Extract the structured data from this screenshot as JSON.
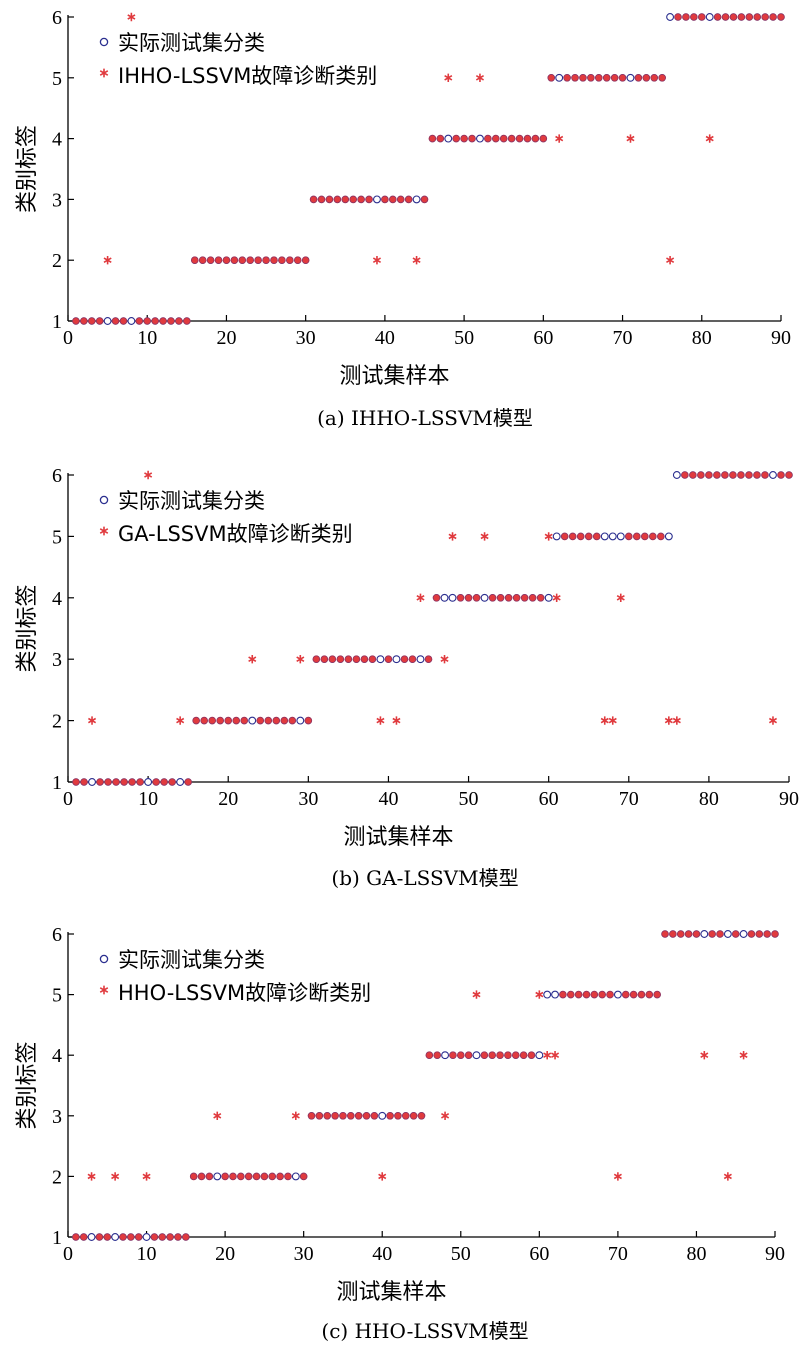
{
  "chart_data": [
    {
      "type": "scatter",
      "caption": "(a) IHHO-LSSVM模型",
      "xlabel": "测试集样本",
      "ylabel": "类别标签",
      "xlim": [
        0,
        90
      ],
      "ylim": [
        1,
        6
      ],
      "xticks": [
        0,
        10,
        20,
        30,
        40,
        50,
        60,
        70,
        80,
        90
      ],
      "yticks": [
        1,
        2,
        3,
        4,
        5,
        6
      ],
      "legend_position": "top-left",
      "series": [
        {
          "name": "实际测试集分类",
          "marker": "circle",
          "color": "#2b2f8f",
          "x": [
            1,
            2,
            3,
            4,
            5,
            6,
            7,
            8,
            9,
            10,
            11,
            12,
            13,
            14,
            15,
            16,
            17,
            18,
            19,
            20,
            21,
            22,
            23,
            24,
            25,
            26,
            27,
            28,
            29,
            30,
            31,
            32,
            33,
            34,
            35,
            36,
            37,
            38,
            39,
            40,
            41,
            42,
            43,
            44,
            45,
            46,
            47,
            48,
            49,
            50,
            51,
            52,
            53,
            54,
            55,
            56,
            57,
            58,
            59,
            60,
            61,
            62,
            63,
            64,
            65,
            66,
            67,
            68,
            69,
            70,
            71,
            72,
            73,
            74,
            75,
            76,
            77,
            78,
            79,
            80,
            81,
            82,
            83,
            84,
            85,
            86,
            87,
            88,
            89,
            90
          ],
          "y": [
            1,
            1,
            1,
            1,
            1,
            1,
            1,
            1,
            1,
            1,
            1,
            1,
            1,
            1,
            1,
            2,
            2,
            2,
            2,
            2,
            2,
            2,
            2,
            2,
            2,
            2,
            2,
            2,
            2,
            2,
            3,
            3,
            3,
            3,
            3,
            3,
            3,
            3,
            3,
            3,
            3,
            3,
            3,
            3,
            3,
            4,
            4,
            4,
            4,
            4,
            4,
            4,
            4,
            4,
            4,
            4,
            4,
            4,
            4,
            4,
            5,
            5,
            5,
            5,
            5,
            5,
            5,
            5,
            5,
            5,
            5,
            5,
            5,
            5,
            5,
            6,
            6,
            6,
            6,
            6,
            6,
            6,
            6,
            6,
            6,
            6,
            6,
            6,
            6,
            6
          ]
        },
        {
          "name": "IHHO-LSSVM故障诊断类别",
          "marker": "star",
          "color": "#e03a3e",
          "x": [
            1,
            2,
            3,
            4,
            5,
            6,
            7,
            8,
            9,
            10,
            11,
            12,
            13,
            14,
            15,
            16,
            17,
            18,
            19,
            20,
            21,
            22,
            23,
            24,
            25,
            26,
            27,
            28,
            29,
            30,
            31,
            32,
            33,
            34,
            35,
            36,
            37,
            38,
            39,
            40,
            41,
            42,
            43,
            44,
            45,
            46,
            47,
            48,
            49,
            50,
            51,
            52,
            53,
            54,
            55,
            56,
            57,
            58,
            59,
            60,
            61,
            62,
            63,
            64,
            65,
            66,
            67,
            68,
            69,
            70,
            71,
            72,
            73,
            74,
            75,
            76,
            77,
            78,
            79,
            80,
            81,
            82,
            83,
            84,
            85,
            86,
            87,
            88,
            89,
            90
          ],
          "y": [
            1,
            1,
            1,
            1,
            2,
            1,
            1,
            6,
            1,
            1,
            1,
            1,
            1,
            1,
            1,
            2,
            2,
            2,
            2,
            2,
            2,
            2,
            2,
            2,
            2,
            2,
            2,
            2,
            2,
            2,
            3,
            3,
            3,
            3,
            3,
            3,
            3,
            3,
            2,
            3,
            3,
            3,
            3,
            2,
            3,
            4,
            4,
            5,
            4,
            4,
            4,
            5,
            4,
            4,
            4,
            4,
            4,
            4,
            4,
            4,
            5,
            4,
            5,
            5,
            5,
            5,
            5,
            5,
            5,
            5,
            4,
            5,
            5,
            5,
            5,
            2,
            6,
            6,
            6,
            6,
            4,
            6,
            6,
            6,
            6,
            6,
            6,
            6,
            6,
            6
          ]
        }
      ]
    },
    {
      "type": "scatter",
      "caption": "(b) GA-LSSVM模型",
      "xlabel": "测试集样本",
      "ylabel": "类别标签",
      "xlim": [
        0,
        90
      ],
      "ylim": [
        1,
        6
      ],
      "xticks": [
        0,
        10,
        20,
        30,
        40,
        50,
        60,
        70,
        80,
        90
      ],
      "yticks": [
        1,
        2,
        3,
        4,
        5,
        6
      ],
      "legend_position": "top-left",
      "series": [
        {
          "name": "实际测试集分类",
          "marker": "circle",
          "color": "#2b2f8f",
          "x": [
            1,
            2,
            3,
            4,
            5,
            6,
            7,
            8,
            9,
            10,
            11,
            12,
            13,
            14,
            15,
            16,
            17,
            18,
            19,
            20,
            21,
            22,
            23,
            24,
            25,
            26,
            27,
            28,
            29,
            30,
            31,
            32,
            33,
            34,
            35,
            36,
            37,
            38,
            39,
            40,
            41,
            42,
            43,
            44,
            45,
            46,
            47,
            48,
            49,
            50,
            51,
            52,
            53,
            54,
            55,
            56,
            57,
            58,
            59,
            60,
            61,
            62,
            63,
            64,
            65,
            66,
            67,
            68,
            69,
            70,
            71,
            72,
            73,
            74,
            75,
            76,
            77,
            78,
            79,
            80,
            81,
            82,
            83,
            84,
            85,
            86,
            87,
            88,
            89,
            90
          ],
          "y": [
            1,
            1,
            1,
            1,
            1,
            1,
            1,
            1,
            1,
            1,
            1,
            1,
            1,
            1,
            1,
            2,
            2,
            2,
            2,
            2,
            2,
            2,
            2,
            2,
            2,
            2,
            2,
            2,
            2,
            2,
            3,
            3,
            3,
            3,
            3,
            3,
            3,
            3,
            3,
            3,
            3,
            3,
            3,
            3,
            3,
            4,
            4,
            4,
            4,
            4,
            4,
            4,
            4,
            4,
            4,
            4,
            4,
            4,
            4,
            4,
            5,
            5,
            5,
            5,
            5,
            5,
            5,
            5,
            5,
            5,
            5,
            5,
            5,
            5,
            5,
            6,
            6,
            6,
            6,
            6,
            6,
            6,
            6,
            6,
            6,
            6,
            6,
            6,
            6,
            6
          ]
        },
        {
          "name": "GA-LSSVM故障诊断类别",
          "marker": "star",
          "color": "#e03a3e",
          "x": [
            1,
            2,
            3,
            4,
            5,
            6,
            7,
            8,
            9,
            10,
            11,
            12,
            13,
            14,
            15,
            16,
            17,
            18,
            19,
            20,
            21,
            22,
            23,
            24,
            25,
            26,
            27,
            28,
            29,
            30,
            31,
            32,
            33,
            34,
            35,
            36,
            37,
            38,
            39,
            40,
            41,
            42,
            43,
            44,
            45,
            46,
            47,
            48,
            49,
            50,
            51,
            52,
            53,
            54,
            55,
            56,
            57,
            58,
            59,
            60,
            61,
            62,
            63,
            64,
            65,
            66,
            67,
            68,
            69,
            70,
            71,
            72,
            73,
            74,
            75,
            76,
            77,
            78,
            79,
            80,
            81,
            82,
            83,
            84,
            85,
            86,
            87,
            88,
            89,
            90
          ],
          "y": [
            1,
            1,
            2,
            1,
            1,
            1,
            1,
            1,
            1,
            6,
            1,
            1,
            1,
            2,
            1,
            2,
            2,
            2,
            2,
            2,
            2,
            2,
            3,
            2,
            2,
            2,
            2,
            2,
            3,
            2,
            3,
            3,
            3,
            3,
            3,
            3,
            3,
            3,
            2,
            3,
            2,
            3,
            3,
            4,
            3,
            4,
            3,
            5,
            4,
            4,
            4,
            5,
            4,
            4,
            4,
            4,
            4,
            4,
            4,
            5,
            4,
            5,
            5,
            5,
            5,
            5,
            2,
            2,
            4,
            5,
            5,
            5,
            5,
            5,
            2,
            2,
            6,
            6,
            6,
            6,
            6,
            6,
            6,
            6,
            6,
            6,
            6,
            2,
            6,
            6
          ]
        }
      ]
    },
    {
      "type": "scatter",
      "caption": "(c) HHO-LSSVM模型",
      "xlabel": "测试集样本",
      "ylabel": "类别标签",
      "xlim": [
        0,
        90
      ],
      "ylim": [
        1,
        6
      ],
      "xticks": [
        0,
        10,
        20,
        30,
        40,
        50,
        60,
        70,
        80,
        90
      ],
      "yticks": [
        1,
        2,
        3,
        4,
        5,
        6
      ],
      "legend_position": "top-left",
      "series": [
        {
          "name": "实际测试集分类",
          "marker": "circle",
          "color": "#2b2f8f",
          "x": [
            1,
            2,
            3,
            4,
            5,
            6,
            7,
            8,
            9,
            10,
            11,
            12,
            13,
            14,
            15,
            16,
            17,
            18,
            19,
            20,
            21,
            22,
            23,
            24,
            25,
            26,
            27,
            28,
            29,
            30,
            31,
            32,
            33,
            34,
            35,
            36,
            37,
            38,
            39,
            40,
            41,
            42,
            43,
            44,
            45,
            46,
            47,
            48,
            49,
            50,
            51,
            52,
            53,
            54,
            55,
            56,
            57,
            58,
            59,
            60,
            61,
            62,
            63,
            64,
            65,
            66,
            67,
            68,
            69,
            70,
            71,
            72,
            73,
            74,
            75,
            76,
            77,
            78,
            79,
            80,
            81,
            82,
            83,
            84,
            85,
            86,
            87,
            88,
            89,
            90
          ],
          "y": [
            1,
            1,
            1,
            1,
            1,
            1,
            1,
            1,
            1,
            1,
            1,
            1,
            1,
            1,
            1,
            2,
            2,
            2,
            2,
            2,
            2,
            2,
            2,
            2,
            2,
            2,
            2,
            2,
            2,
            2,
            3,
            3,
            3,
            3,
            3,
            3,
            3,
            3,
            3,
            3,
            3,
            3,
            3,
            3,
            3,
            4,
            4,
            4,
            4,
            4,
            4,
            4,
            4,
            4,
            4,
            4,
            4,
            4,
            4,
            4,
            5,
            5,
            5,
            5,
            5,
            5,
            5,
            5,
            5,
            5,
            5,
            5,
            5,
            5,
            5,
            6,
            6,
            6,
            6,
            6,
            6,
            6,
            6,
            6,
            6,
            6,
            6,
            6,
            6,
            6
          ]
        },
        {
          "name": "HHO-LSSVM故障诊断类别",
          "marker": "star",
          "color": "#e03a3e",
          "x": [
            1,
            2,
            3,
            4,
            5,
            6,
            7,
            8,
            9,
            10,
            11,
            12,
            13,
            14,
            15,
            16,
            17,
            18,
            19,
            20,
            21,
            22,
            23,
            24,
            25,
            26,
            27,
            28,
            29,
            30,
            31,
            32,
            33,
            34,
            35,
            36,
            37,
            38,
            39,
            40,
            41,
            42,
            43,
            44,
            45,
            46,
            47,
            48,
            49,
            50,
            51,
            52,
            53,
            54,
            55,
            56,
            57,
            58,
            59,
            60,
            61,
            62,
            63,
            64,
            65,
            66,
            67,
            68,
            69,
            70,
            71,
            72,
            73,
            74,
            75,
            76,
            77,
            78,
            79,
            80,
            81,
            82,
            83,
            84,
            85,
            86,
            87,
            88,
            89,
            90
          ],
          "y": [
            1,
            1,
            2,
            1,
            1,
            2,
            1,
            1,
            1,
            2,
            1,
            1,
            1,
            1,
            1,
            2,
            2,
            2,
            3,
            2,
            2,
            2,
            2,
            2,
            2,
            2,
            2,
            2,
            3,
            2,
            3,
            3,
            3,
            3,
            3,
            3,
            3,
            3,
            3,
            2,
            3,
            3,
            3,
            3,
            3,
            4,
            4,
            3,
            4,
            4,
            4,
            5,
            4,
            4,
            4,
            4,
            4,
            4,
            4,
            5,
            4,
            4,
            5,
            5,
            5,
            5,
            5,
            5,
            5,
            2,
            5,
            5,
            5,
            5,
            5,
            6,
            6,
            6,
            6,
            6,
            4,
            6,
            6,
            2,
            6,
            4,
            6,
            6,
            6,
            6
          ]
        }
      ]
    }
  ]
}
